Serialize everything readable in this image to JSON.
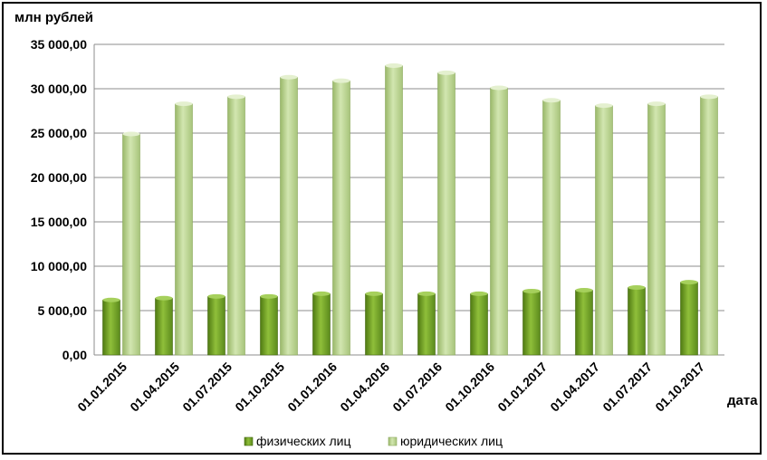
{
  "chart_data": {
    "type": "bar",
    "y_unit_label": "млн рублей",
    "x_unit_label": "дата",
    "categories": [
      "01.01.2015",
      "01.04.2015",
      "01.07.2015",
      "01.10.2015",
      "01.01.2016",
      "01.04.2016",
      "01.07.2016",
      "01.10.2016",
      "01.01.2017",
      "01.04.2017",
      "01.07.2017",
      "01.10.2017"
    ],
    "series": [
      {
        "name": "физических лиц",
        "color": "#6b9a24",
        "values": [
          6200,
          6400,
          6600,
          6600,
          6900,
          6900,
          6900,
          6900,
          7200,
          7300,
          7600,
          8200
        ]
      },
      {
        "name": "юридических лиц",
        "color": "#b5cf8a",
        "values": [
          24900,
          28300,
          29100,
          31300,
          30900,
          32600,
          31800,
          30100,
          28700,
          28100,
          28300,
          29100
        ]
      }
    ],
    "y_ticks": [
      "0,00",
      "5 000,00",
      "10 000,00",
      "15 000,00",
      "20 000,00",
      "25 000,00",
      "30 000,00",
      "35 000,00"
    ],
    "ylim": [
      0,
      35000
    ],
    "grid": true,
    "legend_position": "bottom"
  }
}
